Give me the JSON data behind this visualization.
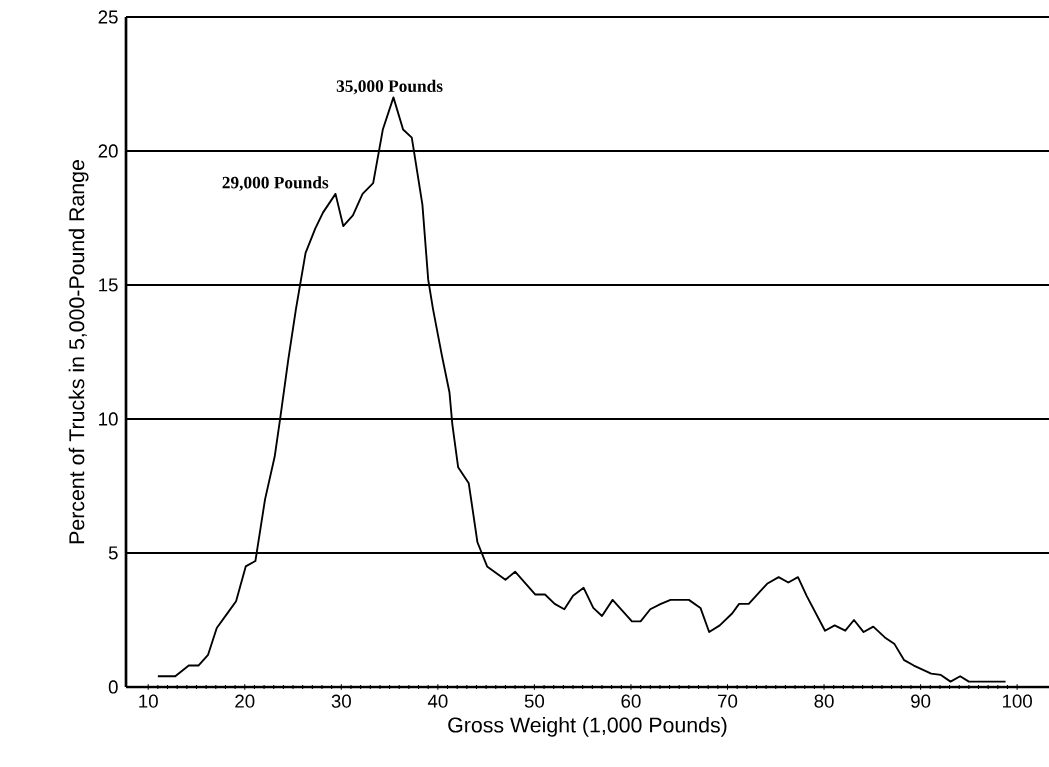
{
  "chart_data": {
    "type": "line",
    "xlabel": "Gross Weight (1,000 Pounds)",
    "ylabel": "Percent of Trucks in 5,000-Pound Range",
    "xlim": [
      7.7,
      103.3
    ],
    "ylim": [
      0,
      25
    ],
    "xticks": [
      10,
      20,
      30,
      40,
      50,
      60,
      70,
      80,
      90,
      100
    ],
    "yticks": [
      0,
      5,
      10,
      15,
      20,
      25
    ],
    "grid": "y",
    "marker": "none",
    "line_style": "solid",
    "annotations": [
      {
        "text": "35,000 Pounds",
        "x": 35,
        "y": 22
      },
      {
        "text": "29,000 Pounds",
        "x": 29,
        "y": 18.4
      }
    ],
    "series": [
      {
        "color": "#000000",
        "x": [
          11,
          12.8,
          14.2,
          15.2,
          16.2,
          17.1,
          18.1,
          19.1,
          20.1,
          21.1,
          22.1,
          23.1,
          23.7,
          24.5,
          25.3,
          26.3,
          27.3,
          28.1,
          29.4,
          30.2,
          31.2,
          32.2,
          33.3,
          34.3,
          35.4,
          36.4,
          37.3,
          38.4,
          39,
          39.5,
          40.4,
          41.2,
          41.5,
          42.1,
          43.2,
          44.1,
          45.1,
          47,
          48,
          50.1,
          51.1,
          52.1,
          53.1,
          54,
          55.1,
          56.1,
          57,
          58.1,
          60.1,
          61,
          62,
          63.1,
          64.1,
          66,
          67.2,
          68.1,
          69.2,
          70.5,
          71.2,
          72.2,
          74.1,
          75.3,
          76.3,
          77.3,
          78.2,
          80.1,
          81.1,
          82.2,
          83.1,
          84.1,
          85.1,
          86.3,
          87.3,
          88.3,
          89.3,
          91.1,
          92.1,
          93.1,
          94.1,
          95,
          96,
          98.8
        ],
        "values": [
          0.4,
          0.4,
          0.8,
          0.8,
          1.2,
          2.2,
          2.7,
          3.2,
          4.5,
          4.7,
          7.0,
          8.6,
          10.1,
          12.2,
          14.1,
          16.2,
          17.1,
          17.7,
          18.4,
          17.2,
          17.6,
          18.4,
          18.8,
          20.8,
          22.0,
          20.8,
          20.5,
          18.0,
          15.2,
          14.1,
          12.4,
          11.0,
          9.8,
          8.2,
          7.6,
          5.4,
          4.5,
          4.0,
          4.3,
          3.45,
          3.45,
          3.1,
          2.9,
          3.4,
          3.7,
          2.95,
          2.65,
          3.25,
          2.45,
          2.45,
          2.9,
          3.1,
          3.25,
          3.25,
          2.95,
          2.05,
          2.3,
          2.75,
          3.1,
          3.1,
          3.85,
          4.1,
          3.9,
          4.1,
          3.4,
          2.1,
          2.3,
          2.1,
          2.5,
          2.05,
          2.25,
          1.85,
          1.6,
          1.0,
          0.8,
          0.5,
          0.45,
          0.2,
          0.4,
          0.2,
          0.2,
          0.2
        ]
      }
    ]
  }
}
